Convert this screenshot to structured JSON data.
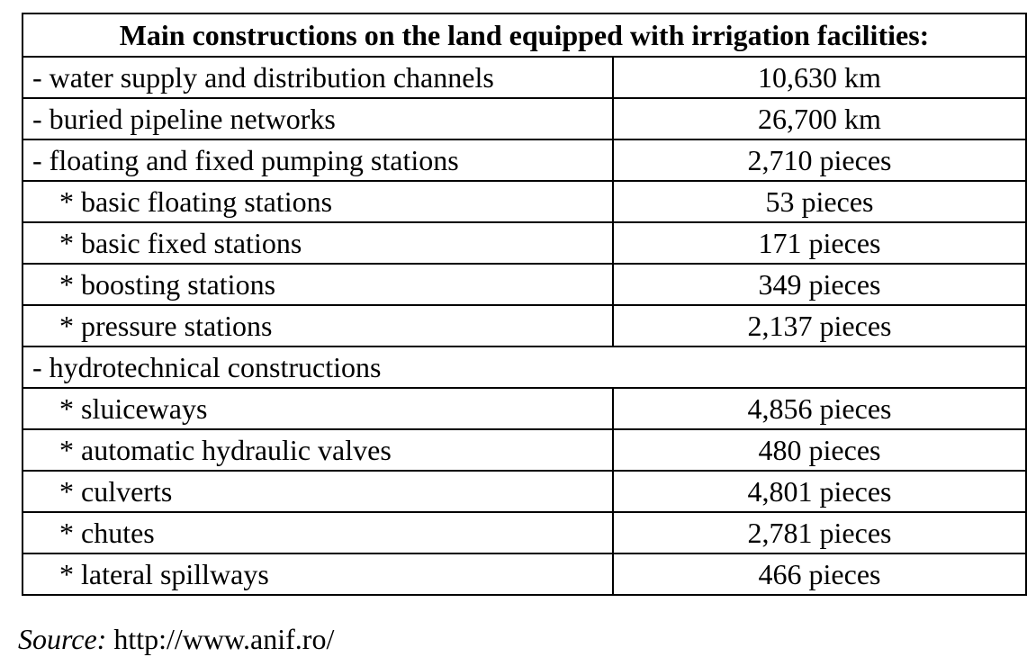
{
  "table": {
    "title": "Main constructions on the land equipped with irrigation facilities:",
    "rows": [
      {
        "label": "- water supply and distribution channels",
        "value": "10,630 km"
      },
      {
        "label": "- buried pipeline networks",
        "value": "26,700 km"
      },
      {
        "label": "- floating and fixed pumping stations",
        "value": "2,710 pieces"
      },
      {
        "label": "* basic floating stations",
        "value": "53 pieces"
      },
      {
        "label": "* basic fixed stations",
        "value": "171 pieces"
      },
      {
        "label": "* boosting stations",
        "value": "349 pieces"
      },
      {
        "label": "* pressure stations",
        "value": "2,137 pieces"
      },
      {
        "label": "- hydrotechnical constructions"
      },
      {
        "label": "* sluiceways",
        "value": "4,856 pieces"
      },
      {
        "label": "* automatic hydraulic valves",
        "value": "480 pieces"
      },
      {
        "label": "* culverts",
        "value": "4,801 pieces"
      },
      {
        "label": "* chutes",
        "value": "2,781 pieces"
      },
      {
        "label": "* lateral spillways",
        "value": "466 pieces"
      }
    ]
  },
  "source": {
    "label": "Source:",
    "url": "http://www.anif.ro/"
  }
}
